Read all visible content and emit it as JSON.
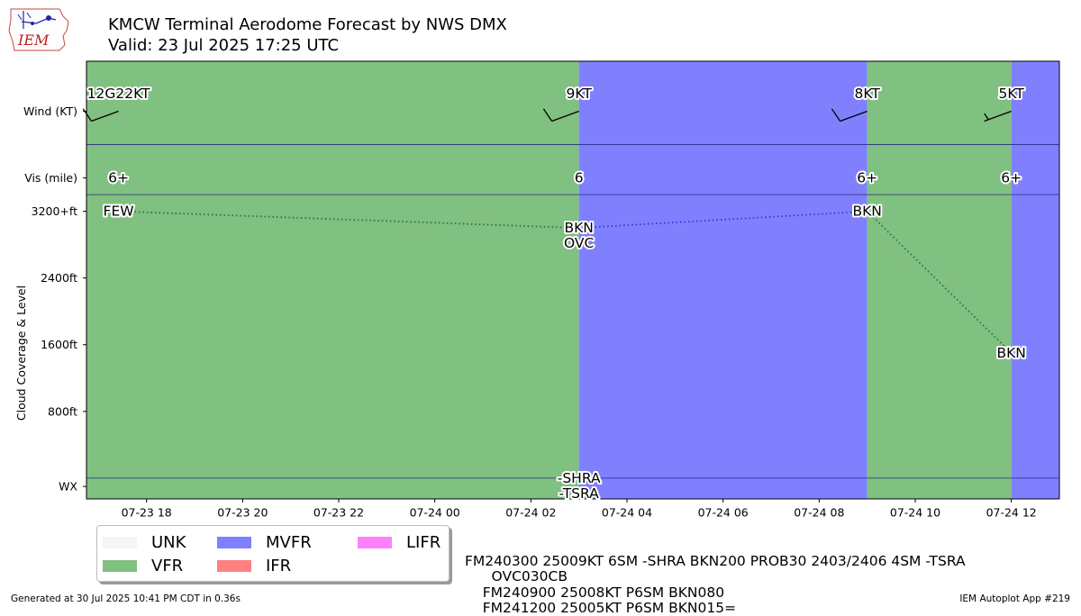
{
  "header": {
    "title": "KMCW Terminal Aerodome Forecast by NWS DMX",
    "valid": "Valid: 23 Jul 2025 17:25 UTC",
    "logo_text": "IEM"
  },
  "footer": {
    "generated": "Generated at 30 Jul 2025 10:41 PM CDT in 0.36s",
    "app": "IEM Autoplot App #219"
  },
  "taf_text": [
    "FM240300 25009KT 6SM -SHRA BKN200 PROB30 2403/2406 4SM -TSRA",
    "      OVC030CB",
    "    FM240900 25008KT P6SM BKN080",
    "    FM241200 25005KT P6SM BKN015="
  ],
  "legend": [
    {
      "label": "UNK",
      "color": "#f5f5f5"
    },
    {
      "label": "VFR",
      "color": "#80c080"
    },
    {
      "label": "MVFR",
      "color": "#8080ff"
    },
    {
      "label": "IFR",
      "color": "#ff8080"
    },
    {
      "label": "LIFR",
      "color": "#ff80ff"
    }
  ],
  "chart_data": {
    "type": "timeline",
    "xlim": [
      "2025-07-23 16:45",
      "2025-07-24 13:00"
    ],
    "x_ticks": [
      {
        "t": "2025-07-23 18:00",
        "label": "07-23 18"
      },
      {
        "t": "2025-07-23 20:00",
        "label": "07-23 20"
      },
      {
        "t": "2025-07-23 22:00",
        "label": "07-23 22"
      },
      {
        "t": "2025-07-24 00:00",
        "label": "07-24 00"
      },
      {
        "t": "2025-07-24 02:00",
        "label": "07-24 02"
      },
      {
        "t": "2025-07-24 04:00",
        "label": "07-24 04"
      },
      {
        "t": "2025-07-24 06:00",
        "label": "07-24 06"
      },
      {
        "t": "2025-07-24 08:00",
        "label": "07-24 08"
      },
      {
        "t": "2025-07-24 10:00",
        "label": "07-24 10"
      },
      {
        "t": "2025-07-24 12:00",
        "label": "07-24 12"
      }
    ],
    "ylabel": "Cloud Coverage & Level",
    "y_ticks": [
      {
        "label": "Wind (KT)",
        "value": 4400
      },
      {
        "label": "Vis (mile)",
        "value": 3600
      },
      {
        "label": "3200+ft",
        "value": 3200
      },
      {
        "label": "2400ft",
        "value": 2400
      },
      {
        "label": "1600ft",
        "value": 1600
      },
      {
        "label": "800ft",
        "value": 800
      },
      {
        "label": "WX",
        "value": -100
      }
    ],
    "ylim": [
      -250,
      5000
    ],
    "separators": [
      4000,
      3400,
      0
    ],
    "categories": [
      {
        "start": "2025-07-23 16:45",
        "end": "2025-07-24 03:00",
        "cat": "VFR",
        "color": "#80c080"
      },
      {
        "start": "2025-07-24 03:00",
        "end": "2025-07-24 09:00",
        "cat": "MVFR",
        "color": "#8080ff"
      },
      {
        "start": "2025-07-24 09:00",
        "end": "2025-07-24 12:00",
        "cat": "VFR",
        "color": "#80c080"
      },
      {
        "start": "2025-07-24 12:00",
        "end": "2025-07-24 13:00",
        "cat": "MVFR",
        "color": "#8080ff"
      }
    ],
    "wind": [
      {
        "t": "2025-07-23 17:25",
        "label": "12G22KT",
        "dir": 250,
        "speed": 12
      },
      {
        "t": "2025-07-24 03:00",
        "label": "9KT",
        "dir": 250,
        "speed": 9
      },
      {
        "t": "2025-07-24 09:00",
        "label": "8KT",
        "dir": 250,
        "speed": 8
      },
      {
        "t": "2025-07-24 12:00",
        "label": "5KT",
        "dir": 250,
        "speed": 5
      }
    ],
    "visibility": [
      {
        "t": "2025-07-23 17:25",
        "label": "6+"
      },
      {
        "t": "2025-07-24 03:00",
        "label": "6"
      },
      {
        "t": "2025-07-24 09:00",
        "label": "6+"
      },
      {
        "t": "2025-07-24 12:00",
        "label": "6+"
      }
    ],
    "clouds": [
      {
        "t": "2025-07-23 17:25",
        "level": 3200,
        "labels": [
          "FEW"
        ]
      },
      {
        "t": "2025-07-24 03:00",
        "level": 3000,
        "labels": [
          "BKN",
          "OVC"
        ]
      },
      {
        "t": "2025-07-24 09:00",
        "level": 3200,
        "labels": [
          "BKN"
        ]
      },
      {
        "t": "2025-07-24 12:00",
        "level": 1500,
        "labels": [
          "BKN"
        ]
      }
    ],
    "weather": [
      {
        "t": "2025-07-24 03:00",
        "labels": [
          "-SHRA",
          "-TSRA"
        ]
      }
    ]
  }
}
